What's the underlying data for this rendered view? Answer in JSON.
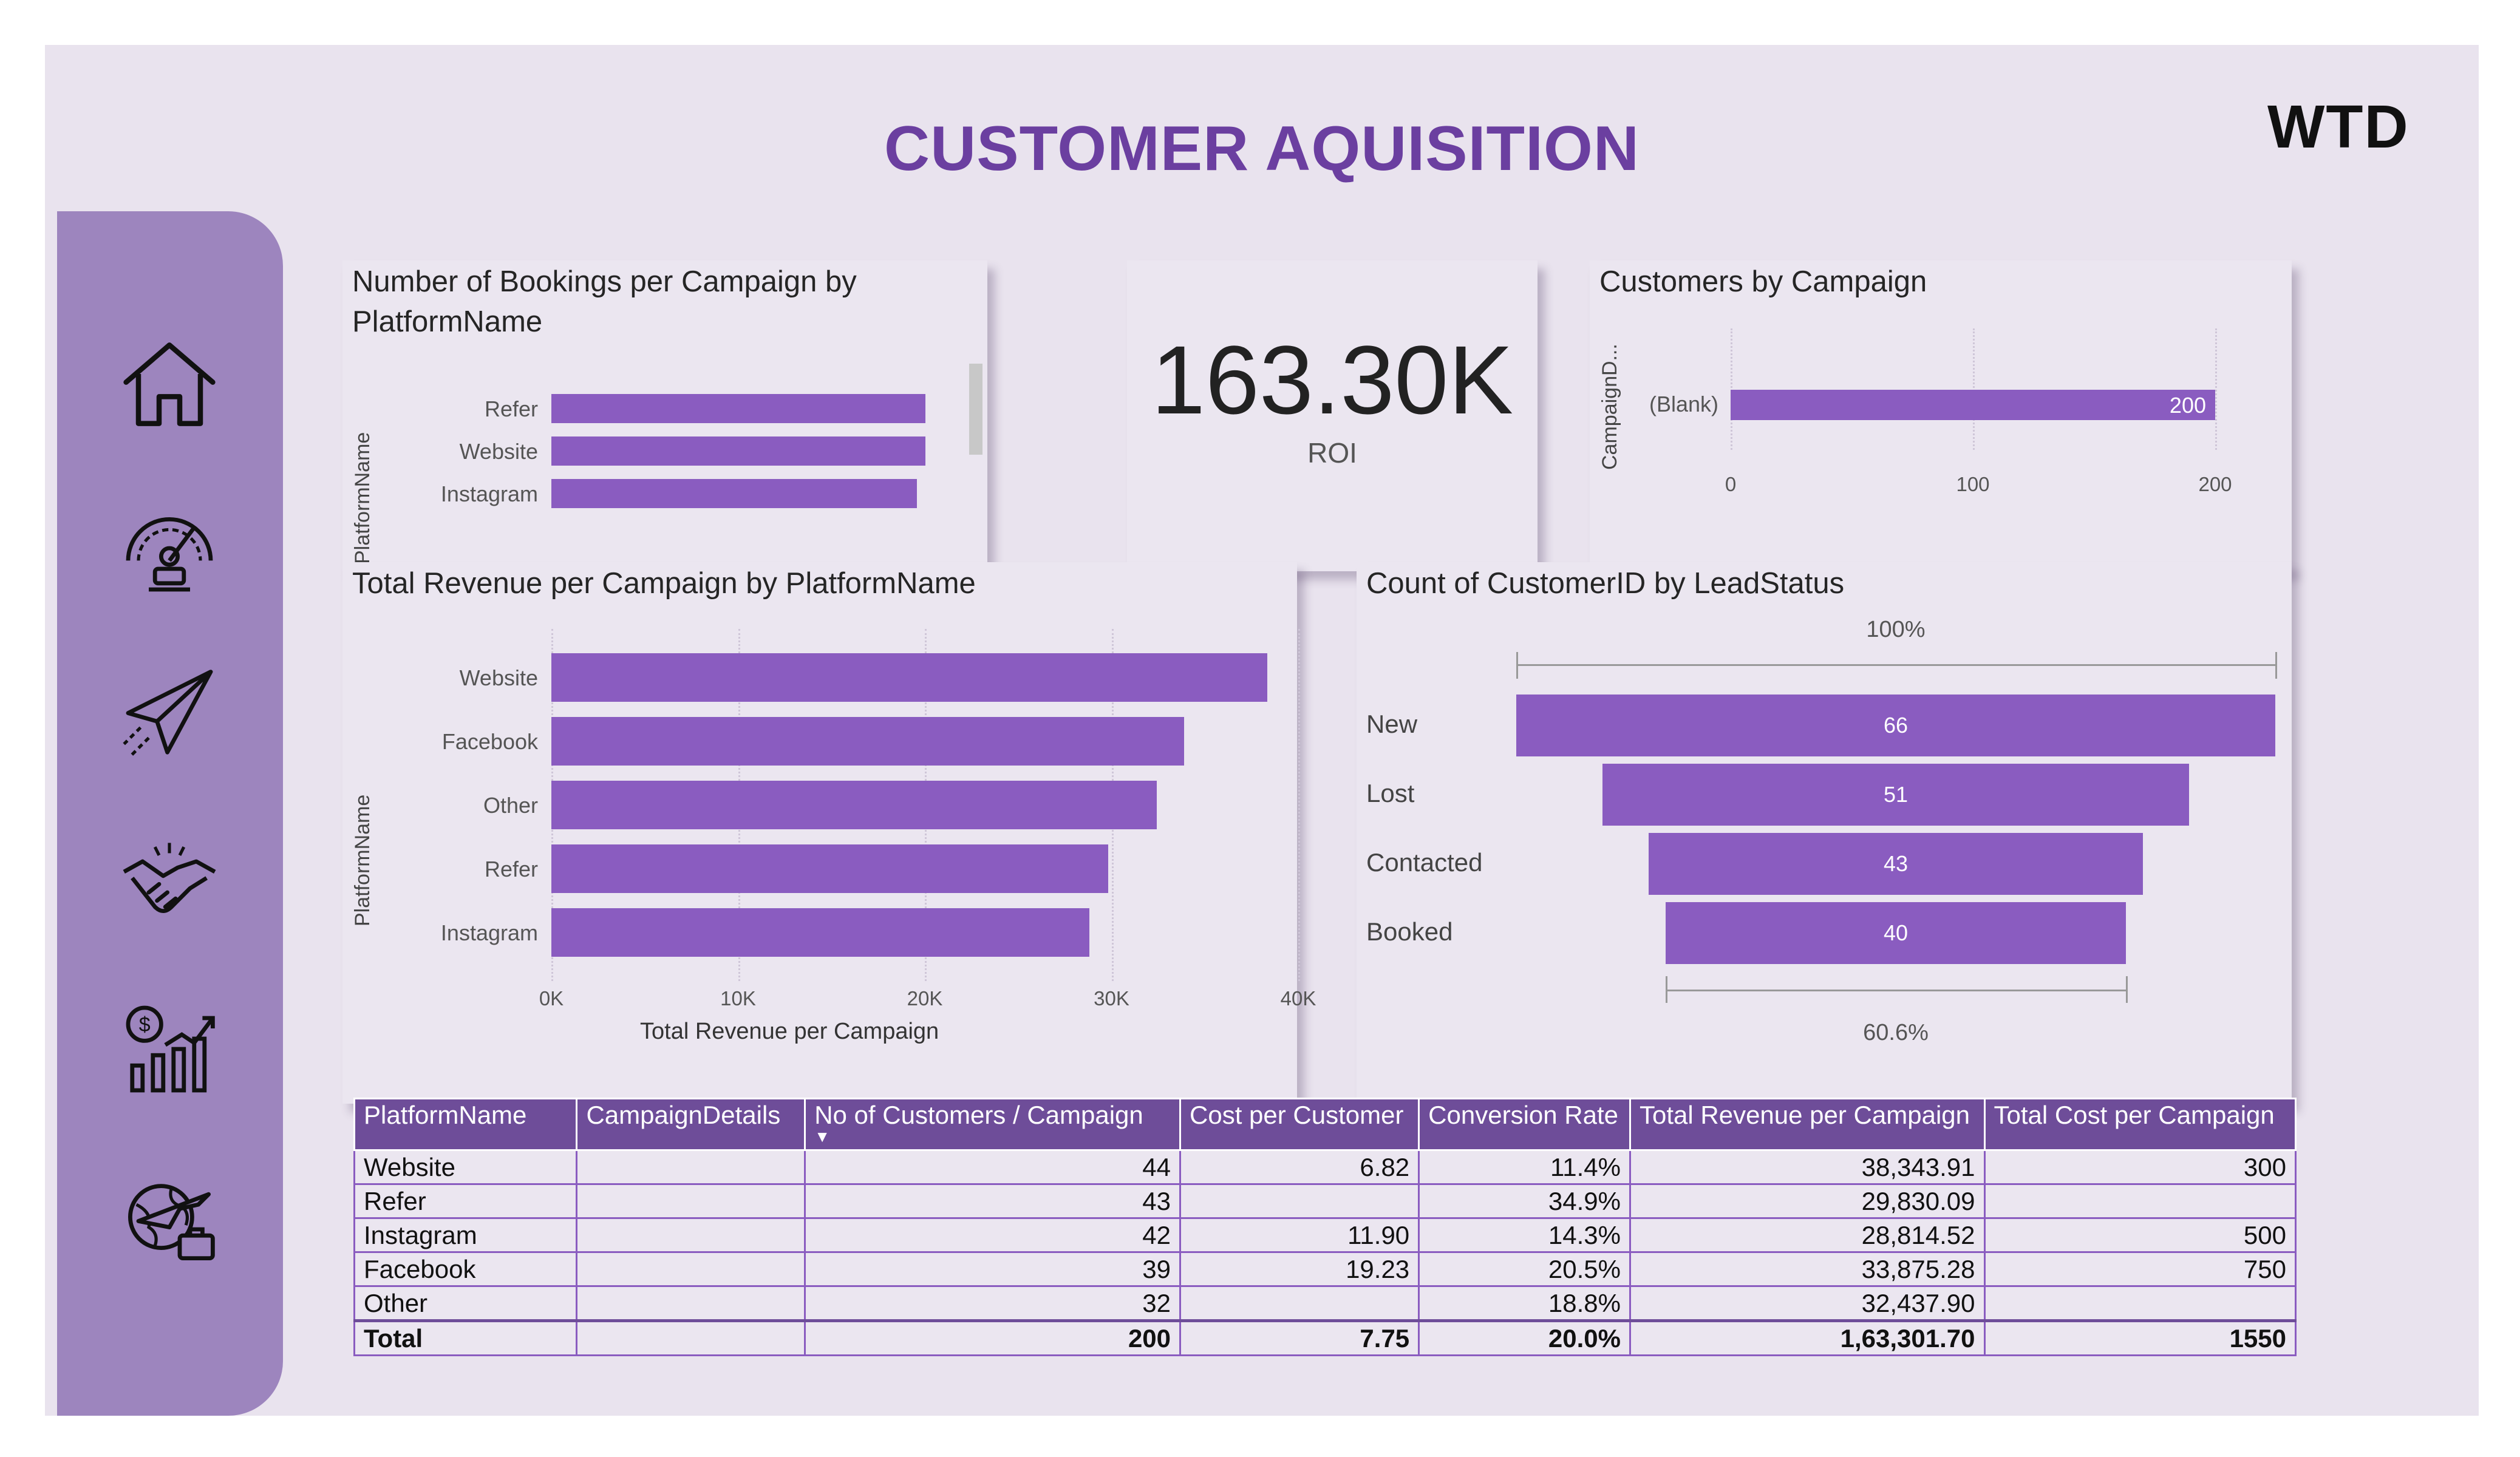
{
  "app": {
    "title": "CUSTOMER AQUISITION",
    "logo_text": "WTD",
    "accent": "#8a5cc0",
    "title_color": "#6b3fa0",
    "sidebar_color": "#9d85be"
  },
  "sidebar": {
    "items": [
      {
        "icon": "home-icon"
      },
      {
        "icon": "dashboard-gauge-icon"
      },
      {
        "icon": "paper-plane-icon"
      },
      {
        "icon": "handshake-icon"
      },
      {
        "icon": "financial-growth-icon"
      },
      {
        "icon": "global-travel-icon"
      }
    ]
  },
  "kpi": {
    "value": "163.30K",
    "label": "ROI"
  },
  "chart_data": [
    {
      "id": "bookings",
      "type": "bar",
      "orientation": "horizontal",
      "title": "Number of Bookings per Campaign by PlatformName",
      "title_line1": "Number of Bookings per Campaign by",
      "title_line2": "PlatformName",
      "ylabel": "PlatformName",
      "categories": [
        "Refer",
        "Website",
        "Instagram"
      ],
      "values": [
        44,
        44,
        43
      ],
      "xlim": [
        0,
        50
      ]
    },
    {
      "id": "customers",
      "type": "bar",
      "orientation": "horizontal",
      "title": "Customers by Campaign",
      "ylabel": "CampaignD...",
      "categories": [
        "(Blank)"
      ],
      "values": [
        200
      ],
      "data_labels": [
        "200"
      ],
      "xlim": [
        0,
        200
      ],
      "xticks": [
        "0",
        "100",
        "200"
      ]
    },
    {
      "id": "revenue",
      "type": "bar",
      "orientation": "horizontal",
      "title": "Total Revenue per Campaign by PlatformName",
      "ylabel": "PlatformName",
      "xlabel": "Total Revenue per Campaign",
      "categories": [
        "Website",
        "Facebook",
        "Other",
        "Refer",
        "Instagram"
      ],
      "values": [
        38343.91,
        33875.28,
        32437.9,
        29830.09,
        28814.52
      ],
      "xlim": [
        0,
        40000
      ],
      "xticks": [
        "0K",
        "10K",
        "20K",
        "30K",
        "40K"
      ]
    },
    {
      "id": "funnel",
      "type": "funnel",
      "title": "Count of CustomerID by LeadStatus",
      "categories": [
        "New",
        "Lost",
        "Contacted",
        "Booked"
      ],
      "values": [
        66,
        51,
        43,
        40
      ],
      "top_percent": "100%",
      "bottom_percent": "60.6%"
    }
  ],
  "table": {
    "columns": [
      "PlatformName",
      "CampaignDetails",
      "No of Customers / Campaign",
      "Cost per Customer",
      "Conversion Rate",
      "Total Revenue per Campaign",
      "Total Cost per Campaign"
    ],
    "sort_indicator": "▼",
    "rows": [
      [
        "Website",
        "",
        "44",
        "6.82",
        "11.4%",
        "38,343.91",
        "300"
      ],
      [
        "Refer",
        "",
        "43",
        "",
        "34.9%",
        "29,830.09",
        ""
      ],
      [
        "Instagram",
        "",
        "42",
        "11.90",
        "14.3%",
        "28,814.52",
        "500"
      ],
      [
        "Facebook",
        "",
        "39",
        "19.23",
        "20.5%",
        "33,875.28",
        "750"
      ],
      [
        "Other",
        "",
        "32",
        "",
        "18.8%",
        "32,437.90",
        ""
      ]
    ],
    "total": [
      "Total",
      "",
      "200",
      "7.75",
      "20.0%",
      "1,63,301.70",
      "1550"
    ]
  }
}
